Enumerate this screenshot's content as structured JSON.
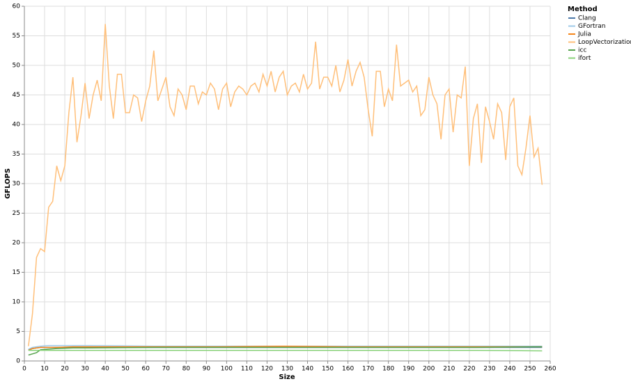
{
  "chart_data": {
    "type": "line",
    "x_label": "Size",
    "y_label": "GFLOPS",
    "legend_title": "Method",
    "legend_position": "right",
    "xlim": [
      0,
      260
    ],
    "xticks": [
      0,
      10,
      20,
      30,
      40,
      50,
      60,
      70,
      80,
      90,
      100,
      110,
      120,
      130,
      140,
      150,
      160,
      170,
      180,
      190,
      200,
      210,
      220,
      230,
      240,
      250,
      260
    ],
    "ylim": [
      0,
      60
    ],
    "yticks": [
      0,
      5,
      10,
      15,
      20,
      25,
      30,
      35,
      40,
      45,
      50,
      55,
      60
    ],
    "grid": true,
    "series": [
      {
        "name": "Clang",
        "color": "#4c78a8",
        "x": [
          2,
          4,
          6,
          8,
          12,
          16,
          24,
          32,
          64,
          96,
          128,
          160,
          192,
          224,
          256
        ],
        "values": [
          1.9,
          2.1,
          2.2,
          2.3,
          2.3,
          2.3,
          2.3,
          2.3,
          2.3,
          2.3,
          2.3,
          2.3,
          2.3,
          2.3,
          2.3
        ]
      },
      {
        "name": "GFortran",
        "color": "#9ecae9",
        "x": [
          2,
          4,
          6,
          8,
          12,
          16,
          24,
          32,
          64,
          96,
          128,
          160,
          192,
          224,
          256
        ],
        "values": [
          2.0,
          2.3,
          2.4,
          2.5,
          2.6,
          2.6,
          2.6,
          2.6,
          2.5,
          2.5,
          2.5,
          2.5,
          2.5,
          2.5,
          2.5
        ]
      },
      {
        "name": "Julia",
        "color": "#f58518",
        "x": [
          2,
          4,
          6,
          8,
          12,
          16,
          24,
          32,
          64,
          96,
          128,
          160,
          192,
          224,
          256
        ],
        "values": [
          1.8,
          2.1,
          2.2,
          2.3,
          2.3,
          2.3,
          2.4,
          2.4,
          2.4,
          2.4,
          2.5,
          2.4,
          2.4,
          2.4,
          2.4
        ]
      },
      {
        "name": "LoopVectorization",
        "color": "#ffbf79",
        "x": [
          2,
          4,
          6,
          8,
          10,
          12,
          14,
          16,
          18,
          20,
          22,
          24,
          26,
          28,
          30,
          32,
          34,
          36,
          38,
          40,
          42,
          44,
          46,
          48,
          50,
          52,
          54,
          56,
          58,
          60,
          62,
          64,
          66,
          68,
          70,
          72,
          74,
          76,
          78,
          80,
          82,
          84,
          86,
          88,
          90,
          92,
          94,
          96,
          98,
          100,
          102,
          104,
          106,
          108,
          110,
          112,
          114,
          116,
          118,
          120,
          122,
          124,
          126,
          128,
          130,
          132,
          134,
          136,
          138,
          140,
          142,
          144,
          146,
          148,
          150,
          152,
          154,
          156,
          158,
          160,
          162,
          164,
          166,
          168,
          170,
          172,
          174,
          176,
          178,
          180,
          182,
          184,
          186,
          188,
          190,
          192,
          194,
          196,
          198,
          200,
          202,
          204,
          206,
          208,
          210,
          212,
          214,
          216,
          218,
          220,
          222,
          224,
          226,
          228,
          230,
          232,
          234,
          236,
          238,
          240,
          242,
          244,
          246,
          248,
          250,
          252,
          254,
          256
        ],
        "values": [
          2.5,
          8,
          17.5,
          19,
          18.5,
          26,
          27,
          33,
          30.5,
          33,
          42,
          48,
          37,
          41.5,
          47,
          41,
          45,
          47.5,
          44,
          57,
          46.5,
          41,
          48.5,
          48.5,
          42,
          42,
          45,
          44.5,
          40.5,
          44,
          46.5,
          52.5,
          44,
          46,
          48,
          43,
          41.5,
          46,
          45,
          42.5,
          46.5,
          46.5,
          43.5,
          45.5,
          45,
          47,
          46,
          42.5,
          46,
          47,
          43,
          45.5,
          46.5,
          46,
          45,
          46.5,
          47,
          45.5,
          48.5,
          46.5,
          49,
          45.5,
          48,
          49,
          45,
          46.5,
          47,
          45.5,
          48.5,
          46,
          47,
          54,
          46,
          48,
          48,
          46.5,
          50,
          45.5,
          47.5,
          51,
          46.5,
          49,
          50.5,
          48,
          42.5,
          38,
          49,
          49,
          43,
          46,
          44,
          53.5,
          46.5,
          47,
          47.5,
          45.5,
          46.5,
          41.5,
          42.5,
          48,
          45,
          43.5,
          37.5,
          45,
          46,
          38.7,
          45,
          44.5,
          49.8,
          33,
          41,
          43.5,
          33.5,
          43,
          40.5,
          37.5,
          43.5,
          42,
          34,
          43,
          44.5,
          33,
          31.5,
          36,
          41.5,
          34.5,
          36,
          29.8
        ]
      },
      {
        "name": "icc",
        "color": "#54a24b",
        "x": [
          2,
          4,
          6,
          8,
          12,
          16,
          24,
          32,
          64,
          96,
          128,
          160,
          192,
          224,
          256
        ],
        "values": [
          1.0,
          1.2,
          1.4,
          1.9,
          2.0,
          2.1,
          2.2,
          2.2,
          2.3,
          2.3,
          2.3,
          2.3,
          2.3,
          2.3,
          2.4
        ]
      },
      {
        "name": "ifort",
        "color": "#88d27a",
        "x": [
          2,
          4,
          6,
          8,
          12,
          16,
          24,
          32,
          64,
          96,
          128,
          160,
          192,
          224,
          256
        ],
        "values": [
          1.8,
          1.8,
          1.8,
          1.8,
          1.8,
          1.8,
          1.8,
          1.8,
          1.8,
          1.8,
          1.8,
          1.8,
          1.8,
          1.8,
          1.7
        ]
      }
    ]
  }
}
